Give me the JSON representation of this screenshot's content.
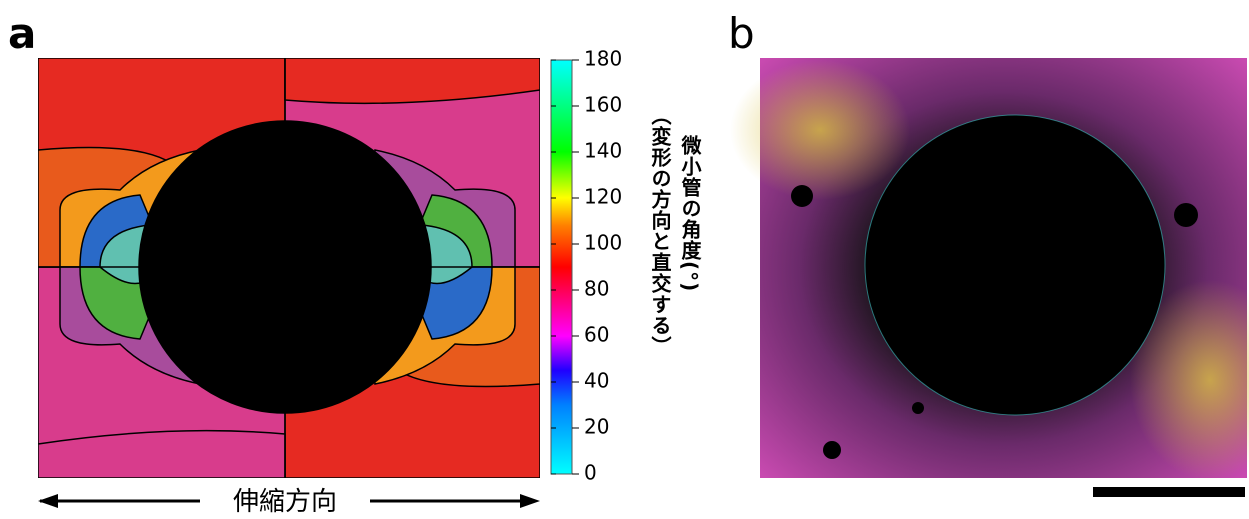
{
  "panel_a": {
    "label": "a",
    "colorbar": {
      "lim": [
        0,
        180
      ],
      "ticks": [
        0,
        20,
        40,
        60,
        80,
        100,
        120,
        140,
        160,
        180
      ],
      "label_line1": "微小管の角度(°)",
      "label_line2": "（変形の方向と直交する）"
    },
    "direction_label": "伸縮方向"
  },
  "panel_b": {
    "label": "b"
  }
}
